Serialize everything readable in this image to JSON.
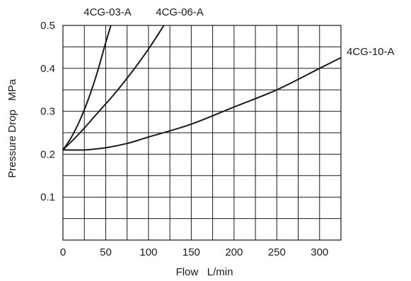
{
  "chart_data": {
    "type": "line",
    "title": "",
    "xlabel": "Flow   L/min",
    "ylabel": "Pressure Drop   MPa",
    "xlim": [
      0,
      325
    ],
    "ylim": [
      0,
      0.5
    ],
    "grid": true,
    "x_ticks": [
      {
        "value": 0,
        "label": "0"
      },
      {
        "value": 50,
        "label": "50"
      },
      {
        "value": 100,
        "label": "100"
      },
      {
        "value": 150,
        "label": "150"
      },
      {
        "value": 200,
        "label": "200"
      },
      {
        "value": 250,
        "label": "250"
      },
      {
        "value": 300,
        "label": "300"
      }
    ],
    "y_ticks": [
      {
        "value": 0.1,
        "label": "0.1"
      },
      {
        "value": 0.2,
        "label": "0.2"
      },
      {
        "value": 0.3,
        "label": "0.3"
      },
      {
        "value": 0.4,
        "label": "0.4"
      },
      {
        "value": 0.5,
        "label": "0.5"
      }
    ],
    "series": [
      {
        "name": "4CG-03-A",
        "color": "#1a1a1a",
        "x": [
          0,
          10,
          20,
          30,
          40,
          50,
          56
        ],
        "y": [
          0.21,
          0.24,
          0.28,
          0.33,
          0.39,
          0.46,
          0.5
        ]
      },
      {
        "name": "4CG-06-A",
        "color": "#1a1a1a",
        "x": [
          0,
          20,
          40,
          60,
          80,
          100,
          118
        ],
        "y": [
          0.21,
          0.25,
          0.295,
          0.34,
          0.39,
          0.445,
          0.5
        ]
      },
      {
        "name": "4CG-10-A",
        "color": "#1a1a1a",
        "x": [
          0,
          25,
          50,
          75,
          100,
          150,
          200,
          250,
          300,
          325
        ],
        "y": [
          0.21,
          0.21,
          0.215,
          0.225,
          0.24,
          0.27,
          0.31,
          0.35,
          0.4,
          0.425
        ]
      }
    ]
  }
}
